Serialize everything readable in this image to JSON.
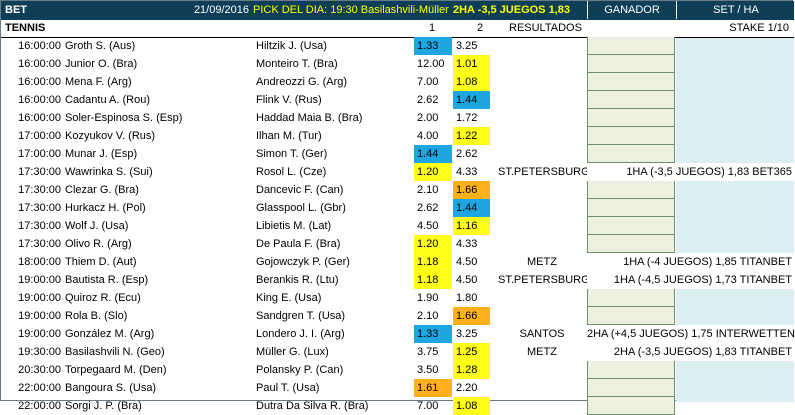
{
  "header": {
    "bet_label": "BET",
    "date": "21/09/2016",
    "pick_label": "PICK DEL DIA: 19:30 Basilashvili-Müller",
    "pick_value": "2HA -3,5 JUEGOS 1,83",
    "ganador": "GANADOR",
    "set_ha": "SET / HA"
  },
  "subheader": {
    "sport": "TENNIS",
    "col1": "1",
    "col2": "2",
    "resultados": "RESULTADOS",
    "stake": "STAKE 1/10"
  },
  "colors": {
    "header_bg": "#0f3f57",
    "pick_text": "#ffff00",
    "blue": "#1ea6e0",
    "yellow": "#ffff1a",
    "orange": "#ffb21c",
    "ganador_bg": "#ebf1de",
    "right_col_bg": "#daeef3"
  },
  "matches": [
    {
      "time": "16:00:00",
      "p1": "Groth S. (Aus)",
      "p2": "Hiltzik J. (Usa)",
      "o1": "1.33",
      "o2": "3.25",
      "h1": "blue",
      "h2": "",
      "result": "",
      "pick": ""
    },
    {
      "time": "16:00:00",
      "p1": "Junior O. (Bra)",
      "p2": "Monteiro T. (Bra)",
      "o1": "12.00",
      "o2": "1.01",
      "h1": "",
      "h2": "yellow",
      "result": "",
      "pick": ""
    },
    {
      "time": "16:00:00",
      "p1": "Mena F. (Arg)",
      "p2": "Andreozzi G. (Arg)",
      "o1": "7.00",
      "o2": "1.08",
      "h1": "",
      "h2": "yellow",
      "result": "",
      "pick": ""
    },
    {
      "time": "16:00:00",
      "p1": "Cadantu A. (Rou)",
      "p2": "Flink V. (Rus)",
      "o1": "2.62",
      "o2": "1.44",
      "h1": "",
      "h2": "blue",
      "result": "",
      "pick": ""
    },
    {
      "time": "16:00:00",
      "p1": "Soler-Espinosa S. (Esp)",
      "p2": "Haddad Maia B. (Bra)",
      "o1": "2.00",
      "o2": "1.72",
      "h1": "",
      "h2": "",
      "result": "",
      "pick": ""
    },
    {
      "time": "17:00:00",
      "p1": "Kozyukov V. (Rus)",
      "p2": "Ilhan M. (Tur)",
      "o1": "4.00",
      "o2": "1.22",
      "h1": "",
      "h2": "yellow",
      "result": "",
      "pick": ""
    },
    {
      "time": "17:00:00",
      "p1": "Munar J. (Esp)",
      "p2": "Simon T. (Ger)",
      "o1": "1.44",
      "o2": "2.62",
      "h1": "blue",
      "h2": "",
      "result": "",
      "pick": ""
    },
    {
      "time": "17:30:00",
      "p1": "Wawrinka S. (Sui)",
      "p2": "Rosol L. (Cze)",
      "o1": "1.20",
      "o2": "4.33",
      "h1": "yellow",
      "h2": "",
      "result": "ST.PETERSBURG",
      "pick": "1HA (-3,5 JUEGOS) 1,83 BET365"
    },
    {
      "time": "17:30:00",
      "p1": "Clezar G. (Bra)",
      "p2": "Dancevic F. (Can)",
      "o1": "2.10",
      "o2": "1.66",
      "h1": "",
      "h2": "orange",
      "result": "",
      "pick": ""
    },
    {
      "time": "17:30:00",
      "p1": "Hurkacz H. (Pol)",
      "p2": "Glasspool L. (Gbr)",
      "o1": "2.62",
      "o2": "1.44",
      "h1": "",
      "h2": "blue",
      "result": "",
      "pick": ""
    },
    {
      "time": "17:30:00",
      "p1": "Wolf J. (Usa)",
      "p2": "Libietis M. (Lat)",
      "o1": "4.50",
      "o2": "1.16",
      "h1": "",
      "h2": "yellow",
      "result": "",
      "pick": ""
    },
    {
      "time": "17:30:00",
      "p1": "Olivo R. (Arg)",
      "p2": "De Paula F. (Bra)",
      "o1": "1.20",
      "o2": "4.33",
      "h1": "yellow",
      "h2": "",
      "result": "",
      "pick": ""
    },
    {
      "time": "18:00:00",
      "p1": "Thiem D. (Aut)",
      "p2": "Gojowczyk P. (Ger)",
      "o1": "1.18",
      "o2": "4.50",
      "h1": "yellow",
      "h2": "",
      "result": "METZ",
      "pick": "1HA (-4 JUEGOS) 1,85 TITANBET"
    },
    {
      "time": "19:00:00",
      "p1": "Bautista R. (Esp)",
      "p2": "Berankis R. (Ltu)",
      "o1": "1.18",
      "o2": "4.50",
      "h1": "yellow",
      "h2": "",
      "result": "ST.PETERSBURG",
      "pick": "1HA (-4,5 JUEGOS) 1,73 TITANBET"
    },
    {
      "time": "19:00:00",
      "p1": "Quiroz R. (Ecu)",
      "p2": "King E. (Usa)",
      "o1": "1.90",
      "o2": "1.80",
      "h1": "",
      "h2": "",
      "result": "",
      "pick": ""
    },
    {
      "time": "19:00:00",
      "p1": "Rola B. (Slo)",
      "p2": "Sandgren T. (Usa)",
      "o1": "2.10",
      "o2": "1.66",
      "h1": "",
      "h2": "orange",
      "result": "",
      "pick": ""
    },
    {
      "time": "19:00:00",
      "p1": "González M. (Arg)",
      "p2": "Londero J. I. (Arg)",
      "o1": "1.33",
      "o2": "3.25",
      "h1": "blue",
      "h2": "",
      "result": "SANTOS",
      "pick": "2HA (+4,5 JUEGOS) 1,75 INTERWETTEN"
    },
    {
      "time": "19:30:00",
      "p1": "Basilashvili N. (Geo)",
      "p2": "Müller G. (Lux)",
      "o1": "3.75",
      "o2": "1.25",
      "h1": "",
      "h2": "yellow",
      "result": "METZ",
      "pick": "2HA (-3,5 JUEGOS) 1,83 TITANBET"
    },
    {
      "time": "20:30:00",
      "p1": "Torpegaard M. (Den)",
      "p2": "Polansky P. (Can)",
      "o1": "3.50",
      "o2": "1.28",
      "h1": "",
      "h2": "yellow",
      "result": "",
      "pick": ""
    },
    {
      "time": "22:00:00",
      "p1": "Bangoura S. (Usa)",
      "p2": "Paul T. (Usa)",
      "o1": "1.61",
      "o2": "2.20",
      "h1": "orange",
      "h2": "",
      "result": "",
      "pick": ""
    },
    {
      "time": "22:00:00",
      "p1": "Sorgi J. P. (Bra)",
      "p2": "Dutra Da Silva R. (Bra)",
      "o1": "7.00",
      "o2": "1.08",
      "h1": "",
      "h2": "yellow",
      "result": "",
      "pick": ""
    }
  ]
}
